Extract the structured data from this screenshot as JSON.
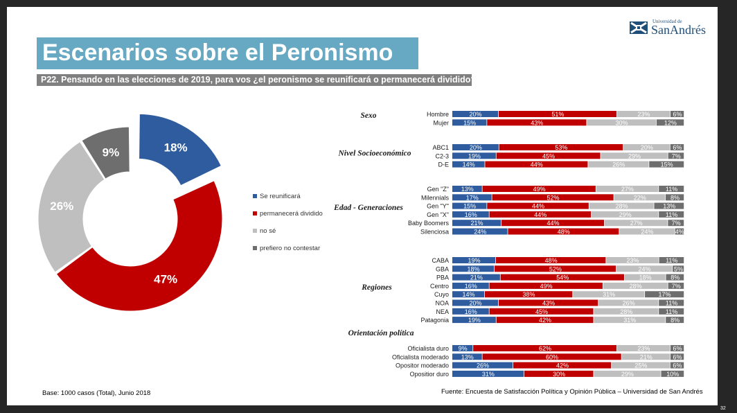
{
  "title": "Escenarios sobre el Peronismo",
  "question": "P22. Pensando en las elecciones de 2019, para vos ¿el peronismo se reunificará o permanecerá dividido?",
  "logo": {
    "small": "Universidad de",
    "big": "SanAndrés"
  },
  "footer": {
    "base": "Base: 1000 casos (Total), Junio  2018",
    "source": "Fuente: Encuesta de Satisfacción Política y Opinión Pública – Universidad de San Andrés"
  },
  "page_number": "32",
  "colors": {
    "reunificara": "#2e5c9e",
    "dividido": "#c00000",
    "nose": "#bfbfbf",
    "prefiero": "#6e6e6e"
  },
  "legend": [
    {
      "label": "Se reunificará",
      "color": "#2e5c9e"
    },
    {
      "label": "permanecerá dividido",
      "color": "#c00000"
    },
    {
      "label": "no sé",
      "color": "#bfbfbf"
    },
    {
      "label": "prefiero no contestar",
      "color": "#6e6e6e"
    }
  ],
  "chart_data": [
    {
      "type": "pie",
      "labels": [
        "Se reunificará",
        "permanecerá dividido",
        "no sé",
        "prefiero no contestar"
      ],
      "values": [
        18,
        47,
        26,
        9
      ],
      "value_labels": [
        "18%",
        "47%",
        "26%",
        "9%"
      ],
      "colors": [
        "#2e5c9e",
        "#c00000",
        "#bfbfbf",
        "#6e6e6e"
      ]
    },
    {
      "type": "bar",
      "stacked": true,
      "orientation": "horizontal",
      "series": [
        "Se reunificará",
        "permanecerá dividido",
        "no sé",
        "prefiero no contestar"
      ],
      "colors": [
        "#2e5c9e",
        "#c00000",
        "#bfbfbf",
        "#6e6e6e"
      ],
      "groups": [
        {
          "name": "Sexo",
          "rows": [
            {
              "label": "Hombre",
              "values": [
                20,
                51,
                23,
                6
              ]
            },
            {
              "label": "Mujer",
              "values": [
                15,
                43,
                30,
                12
              ]
            }
          ]
        },
        {
          "name": "Nivel Socioeconómico",
          "rows": [
            {
              "label": "ABC1",
              "values": [
                20,
                53,
                20,
                6
              ]
            },
            {
              "label": "C2-3",
              "values": [
                19,
                45,
                29,
                7
              ]
            },
            {
              "label": "D-E",
              "values": [
                14,
                44,
                26,
                15
              ]
            }
          ]
        },
        {
          "name": "Edad - Generaciones",
          "rows": [
            {
              "label": "Gen \"Z\"",
              "values": [
                13,
                49,
                27,
                11
              ]
            },
            {
              "label": "Milennials",
              "values": [
                17,
                52,
                22,
                8
              ]
            },
            {
              "label": "Gen \"Y\"",
              "values": [
                15,
                44,
                28,
                13
              ]
            },
            {
              "label": "Gen \"X\"",
              "values": [
                16,
                44,
                29,
                11
              ]
            },
            {
              "label": "Baby Boomers",
              "values": [
                21,
                44,
                27,
                7
              ]
            },
            {
              "label": "Silenciosa",
              "values": [
                24,
                48,
                24,
                4
              ]
            }
          ]
        },
        {
          "name": "Regiones",
          "rows": [
            {
              "label": "CABA",
              "values": [
                19,
                48,
                23,
                11
              ]
            },
            {
              "label": "GBA",
              "values": [
                18,
                52,
                24,
                5
              ]
            },
            {
              "label": "PBA",
              "values": [
                21,
                54,
                18,
                8
              ]
            },
            {
              "label": "Centro",
              "values": [
                16,
                49,
                28,
                7
              ]
            },
            {
              "label": "Cuyo",
              "values": [
                14,
                38,
                31,
                17
              ]
            },
            {
              "label": "NOA",
              "values": [
                20,
                43,
                26,
                11
              ]
            },
            {
              "label": "NEA",
              "values": [
                16,
                45,
                28,
                11
              ]
            },
            {
              "label": "Patagonia",
              "values": [
                19,
                42,
                31,
                8
              ]
            }
          ]
        },
        {
          "name": "Orientación política",
          "rows": [
            {
              "label": "Oficialista duro",
              "values": [
                9,
                62,
                23,
                6
              ]
            },
            {
              "label": "Oficialista moderado",
              "values": [
                13,
                60,
                21,
                6
              ]
            },
            {
              "label": "Opositor moderado",
              "values": [
                26,
                42,
                25,
                6
              ]
            },
            {
              "label": "Opositior duro",
              "values": [
                31,
                30,
                29,
                10
              ]
            }
          ]
        }
      ]
    }
  ]
}
